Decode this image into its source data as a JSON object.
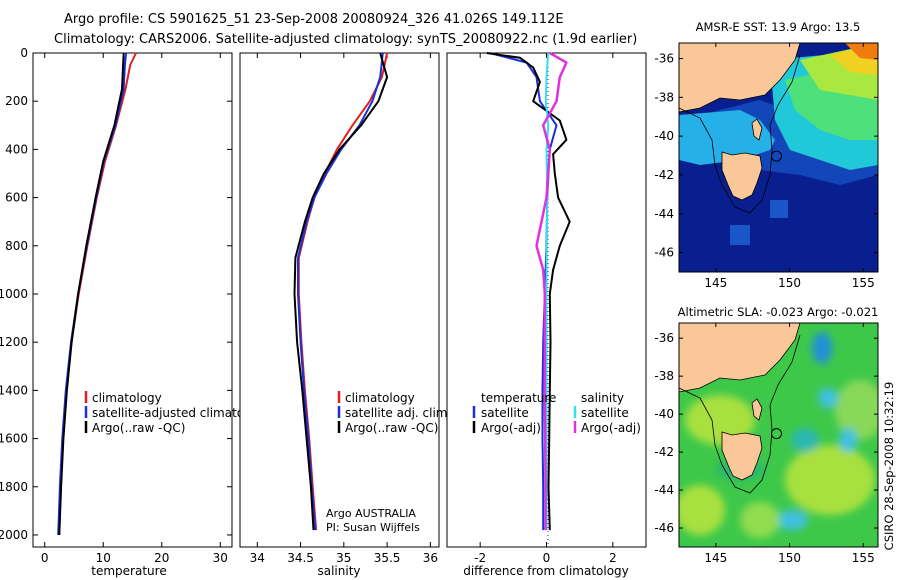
{
  "title_line1": "Argo profile: CS 5901625_51 23-Sep-2008 20080924_326 41.026S 149.112E",
  "title_line2": "Climatology: CARS2006. Satellite-adjusted climatology: synTS_20080922.nc (1.9d earlier)",
  "footer": "CSIRO 28-Sep-2008 10:32:19",
  "colors": {
    "climatology": "#e02020",
    "satellite": "#1a2fd8",
    "argo": "#000000",
    "salinity_sat": "#33e0f0",
    "salinity_argo": "#e030e0",
    "land": "#fac898",
    "deep_ocean": "#0a1f8f"
  },
  "chart_data": [
    {
      "type": "line",
      "name": "temperature",
      "xlabel": "temperature",
      "xlim": [
        -2,
        32
      ],
      "ylim": [
        2050,
        0
      ],
      "xticks": [
        "0",
        "10",
        "20",
        "30"
      ],
      "yticks": [
        "0",
        "200",
        "400",
        "600",
        "800",
        "1000",
        "1200",
        "1400",
        "1600",
        "1800",
        "2000"
      ],
      "legend": [
        "climatology",
        "satellite-adjusted climatology",
        "Argo(..raw -QC)"
      ],
      "series": [
        {
          "name": "climatology",
          "depth": [
            0,
            50,
            150,
            300,
            450,
            600,
            800,
            1000,
            1200,
            1400,
            1600,
            1800,
            2000
          ],
          "values": [
            15.6,
            14.6,
            13.8,
            12.2,
            10.3,
            8.9,
            7.3,
            5.8,
            4.6,
            3.7,
            3.1,
            2.7,
            2.4
          ]
        },
        {
          "name": "satellite-adjusted climatology",
          "depth": [
            0,
            50,
            150,
            300,
            450,
            600,
            800,
            1000,
            1200,
            1400,
            1600,
            1800,
            2000
          ],
          "values": [
            13.9,
            13.7,
            13.5,
            12.1,
            10.1,
            8.8,
            7.2,
            5.7,
            4.5,
            3.6,
            3.0,
            2.6,
            2.3
          ]
        },
        {
          "name": "Argo(..raw -QC)",
          "depth": [
            0,
            50,
            150,
            300,
            450,
            600,
            800,
            1000,
            1200,
            1400,
            1600,
            1800,
            2000
          ],
          "values": [
            13.5,
            13.4,
            13.2,
            11.9,
            10.0,
            8.7,
            7.1,
            5.7,
            4.6,
            3.8,
            3.2,
            2.8,
            2.5
          ]
        }
      ]
    },
    {
      "type": "line",
      "name": "salinity",
      "xlabel": "salinity",
      "xlim": [
        33.8,
        36.1
      ],
      "ylim": [
        2050,
        0
      ],
      "xticks": [
        "34",
        "34.5",
        "35",
        "35.5",
        "36"
      ],
      "legend": [
        "climatology",
        "satellite adj. clim.",
        "Argo(..raw -QC)"
      ],
      "annotation": [
        "Argo AUSTRALIA",
        "PI: Susan Wijffels"
      ],
      "series": [
        {
          "name": "climatology",
          "depth": [
            0,
            100,
            200,
            300,
            400,
            500,
            600,
            700,
            850,
            1000,
            1200,
            1400,
            1600,
            1800,
            1980
          ],
          "values": [
            35.5,
            35.44,
            35.3,
            35.1,
            34.92,
            34.78,
            34.66,
            34.58,
            34.48,
            34.48,
            34.51,
            34.55,
            34.6,
            34.64,
            34.68
          ]
        },
        {
          "name": "satellite adj. clim.",
          "depth": [
            0,
            100,
            200,
            300,
            400,
            500,
            600,
            700,
            850,
            1000,
            1200,
            1400,
            1600,
            1800,
            1980
          ],
          "values": [
            35.45,
            35.42,
            35.33,
            35.18,
            34.97,
            34.8,
            34.66,
            34.57,
            34.47,
            34.47,
            34.5,
            34.54,
            34.59,
            34.63,
            34.67
          ]
        },
        {
          "name": "Argo(..raw -QC)",
          "depth": [
            0,
            100,
            200,
            300,
            400,
            500,
            600,
            700,
            850,
            1000,
            1200,
            1400,
            1600,
            1800,
            1980
          ],
          "values": [
            35.42,
            35.5,
            35.4,
            35.2,
            34.95,
            34.77,
            34.64,
            34.55,
            34.44,
            34.43,
            34.46,
            34.52,
            34.57,
            34.62,
            34.65
          ]
        }
      ]
    },
    {
      "type": "line",
      "name": "difference from climatology",
      "xlabel": "difference from climatology",
      "xlim": [
        -3.0,
        3.0
      ],
      "ylim": [
        2050,
        0
      ],
      "xticks": [
        "-2",
        "0",
        "2"
      ],
      "legend_left": [
        "temperature",
        "satellite",
        "Argo(-adj)"
      ],
      "legend_right": [
        "salinity",
        "satellite",
        "Argo(-adj)"
      ],
      "series": [
        {
          "name": "temperature satellite",
          "depth": [
            0,
            40,
            100,
            200,
            300,
            400,
            600,
            800,
            1000,
            1200,
            1400,
            1600,
            1800,
            1980
          ],
          "values": [
            -1.7,
            -0.6,
            -0.3,
            -0.2,
            0.3,
            0.1,
            0.02,
            0.0,
            -0.05,
            -0.1,
            -0.12,
            -0.12,
            -0.1,
            -0.1
          ]
        },
        {
          "name": "temperature Argo(-adj)",
          "depth": [
            0,
            20,
            60,
            120,
            200,
            280,
            360,
            420,
            500,
            600,
            700,
            800,
            900,
            1000,
            1200,
            1400,
            1600,
            1800,
            1980
          ],
          "values": [
            -1.8,
            -0.8,
            -0.4,
            -0.2,
            -0.4,
            0.4,
            0.6,
            0.2,
            0.25,
            0.35,
            0.7,
            0.4,
            0.2,
            0.1,
            0.12,
            0.1,
            0.08,
            0.06,
            0.1
          ]
        },
        {
          "name": "salinity satellite",
          "depth": [
            0,
            100,
            200,
            300,
            400,
            600,
            800,
            1000,
            1200,
            1400,
            1600,
            1800,
            1980
          ],
          "values": [
            0.05,
            0.0,
            -0.02,
            0.05,
            0.0,
            0.02,
            0.01,
            0.0,
            0.0,
            0.0,
            0.0,
            0.0,
            0.0
          ]
        },
        {
          "name": "salinity Argo(-adj)",
          "depth": [
            0,
            40,
            100,
            200,
            300,
            400,
            600,
            800,
            900,
            1000,
            1200,
            1400,
            1600,
            1800,
            1980
          ],
          "values": [
            0.1,
            0.6,
            0.4,
            0.3,
            -0.1,
            0.1,
            0.0,
            -0.3,
            -0.1,
            -0.05,
            -0.05,
            -0.05,
            -0.04,
            -0.03,
            -0.03
          ]
        }
      ]
    },
    {
      "type": "heatmap",
      "name": "sst map",
      "title": "AMSR-E SST: 13.9 Argo: 13.5",
      "xlim": [
        142.5,
        156
      ],
      "ylim": [
        -47,
        -35.2
      ],
      "xticks": [
        "145",
        "150",
        "155"
      ],
      "yticks": [
        "-36",
        "-38",
        "-40",
        "-42",
        "-44",
        "-46"
      ],
      "argo_position": [
        149.112,
        -41.026
      ]
    },
    {
      "type": "heatmap",
      "name": "sla map",
      "title": "Altimetric SLA: -0.023 Argo: -0.021",
      "xlim": [
        142.5,
        156
      ],
      "ylim": [
        -47,
        -35.2
      ],
      "xticks": [
        "145",
        "150",
        "155"
      ],
      "yticks": [
        "-36",
        "-38",
        "-40",
        "-42",
        "-44",
        "-46"
      ],
      "argo_position": [
        149.112,
        -41.026
      ]
    }
  ]
}
